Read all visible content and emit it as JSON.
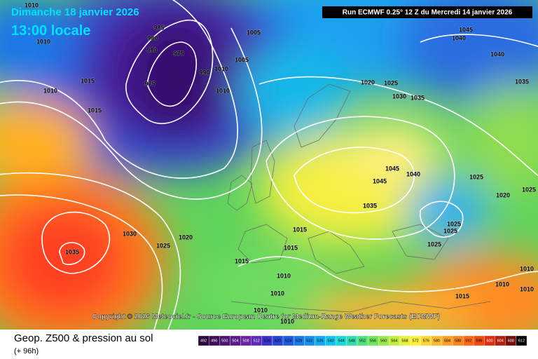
{
  "header": {
    "date": "Dimanche 18 janvier 2026",
    "time": "13:00 locale",
    "run": "Run ECMWF 0.25° 12 Z du Mercredi 14 janvier 2026"
  },
  "copyright": "Copyright © 2026 Meteociel.fr - Source European Centre for Medium-Range Weather Forecasts (ECMWF)",
  "footer": {
    "title": "Geop. Z500 & pression au sol",
    "lead": "(+ 96h)"
  },
  "legend": {
    "scale": [
      492,
      496,
      500,
      504,
      508,
      512,
      516,
      520,
      524,
      528,
      532,
      536,
      540,
      544,
      548,
      552,
      556,
      560,
      564,
      568,
      572,
      576,
      580,
      584,
      588,
      592,
      596,
      600,
      604,
      608,
      612
    ]
  },
  "isobar_labels": [
    1010,
    1010,
    1015,
    1010,
    1015,
    985,
    980,
    980,
    975,
    975,
    990,
    1010,
    1005,
    1005,
    1010,
    1020,
    1025,
    1030,
    1035,
    1045,
    1040,
    1040,
    1035,
    1045,
    1040,
    1045,
    1035,
    1025,
    1020,
    1025,
    1025,
    1025,
    1025,
    1030,
    1035,
    1025,
    1020,
    1015,
    1015,
    1010,
    1010,
    1010,
    1010,
    1015,
    1010,
    1010,
    1010,
    1015
  ]
}
